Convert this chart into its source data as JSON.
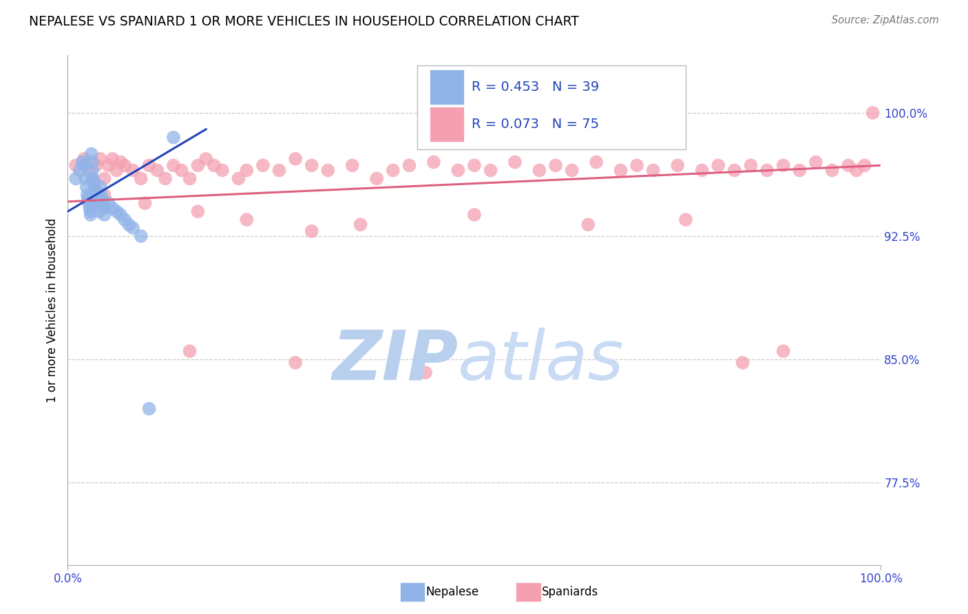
{
  "title": "NEPALESE VS SPANIARD 1 OR MORE VEHICLES IN HOUSEHOLD CORRELATION CHART",
  "source": "Source: ZipAtlas.com",
  "ylabel": "1 or more Vehicles in Household",
  "ytick_values": [
    1.0,
    0.925,
    0.85,
    0.775
  ],
  "xmin": 0.0,
  "xmax": 1.0,
  "ymin": 0.725,
  "ymax": 1.035,
  "nepalese_color": "#90b4e8",
  "spaniard_color": "#f4a0b0",
  "nepalese_R": 0.453,
  "nepalese_N": 39,
  "spaniard_R": 0.073,
  "spaniard_N": 75,
  "trend_blue": "#2244bb",
  "trend_pink": "#dd6080",
  "watermark_zip_color": "#b8d0ee",
  "watermark_atlas_color": "#c8daf4",
  "legend_text_color": "#2244bb",
  "legend_N_color": "#2244bb",
  "nepalese_x": [
    0.01,
    0.015,
    0.018,
    0.02,
    0.022,
    0.023,
    0.024,
    0.025,
    0.026,
    0.027,
    0.028,
    0.028,
    0.029,
    0.03,
    0.03,
    0.031,
    0.032,
    0.033,
    0.034,
    0.035,
    0.036,
    0.037,
    0.038,
    0.04,
    0.041,
    0.042,
    0.043,
    0.044,
    0.045,
    0.05,
    0.055,
    0.06,
    0.065,
    0.07,
    0.075,
    0.08,
    0.09,
    0.1,
    0.13
  ],
  "nepalese_y": [
    0.96,
    0.965,
    0.97,
    0.968,
    0.96,
    0.955,
    0.95,
    0.948,
    0.945,
    0.942,
    0.94,
    0.938,
    0.975,
    0.97,
    0.965,
    0.96,
    0.958,
    0.955,
    0.952,
    0.95,
    0.948,
    0.945,
    0.94,
    0.955,
    0.95,
    0.948,
    0.945,
    0.942,
    0.938,
    0.945,
    0.942,
    0.94,
    0.938,
    0.935,
    0.932,
    0.93,
    0.925,
    0.82,
    0.985
  ],
  "spaniard_x": [
    0.01,
    0.02,
    0.025,
    0.03,
    0.035,
    0.04,
    0.045,
    0.05,
    0.055,
    0.06,
    0.065,
    0.07,
    0.08,
    0.09,
    0.1,
    0.11,
    0.12,
    0.13,
    0.14,
    0.15,
    0.16,
    0.17,
    0.18,
    0.19,
    0.21,
    0.22,
    0.24,
    0.26,
    0.28,
    0.3,
    0.32,
    0.35,
    0.38,
    0.4,
    0.42,
    0.45,
    0.48,
    0.5,
    0.52,
    0.55,
    0.58,
    0.6,
    0.62,
    0.65,
    0.68,
    0.7,
    0.72,
    0.75,
    0.78,
    0.8,
    0.82,
    0.84,
    0.86,
    0.88,
    0.9,
    0.92,
    0.94,
    0.96,
    0.97,
    0.98,
    0.99,
    0.045,
    0.095,
    0.16,
    0.22,
    0.3,
    0.36,
    0.5,
    0.64,
    0.76,
    0.15,
    0.28,
    0.44,
    0.83,
    0.88
  ],
  "spaniard_y": [
    0.968,
    0.972,
    0.965,
    0.96,
    0.968,
    0.972,
    0.96,
    0.968,
    0.972,
    0.965,
    0.97,
    0.968,
    0.965,
    0.96,
    0.968,
    0.965,
    0.96,
    0.968,
    0.965,
    0.96,
    0.968,
    0.972,
    0.968,
    0.965,
    0.96,
    0.965,
    0.968,
    0.965,
    0.972,
    0.968,
    0.965,
    0.968,
    0.96,
    0.965,
    0.968,
    0.97,
    0.965,
    0.968,
    0.965,
    0.97,
    0.965,
    0.968,
    0.965,
    0.97,
    0.965,
    0.968,
    0.965,
    0.968,
    0.965,
    0.968,
    0.965,
    0.968,
    0.965,
    0.968,
    0.965,
    0.97,
    0.965,
    0.968,
    0.965,
    0.968,
    1.0,
    0.95,
    0.945,
    0.94,
    0.935,
    0.928,
    0.932,
    0.938,
    0.932,
    0.935,
    0.855,
    0.848,
    0.842,
    0.848,
    0.855
  ],
  "nepalese_trend_x": [
    0.0,
    0.17
  ],
  "nepalese_trend_y": [
    0.94,
    0.99
  ],
  "spaniard_trend_x": [
    0.0,
    1.0
  ],
  "spaniard_trend_y": [
    0.946,
    0.968
  ]
}
